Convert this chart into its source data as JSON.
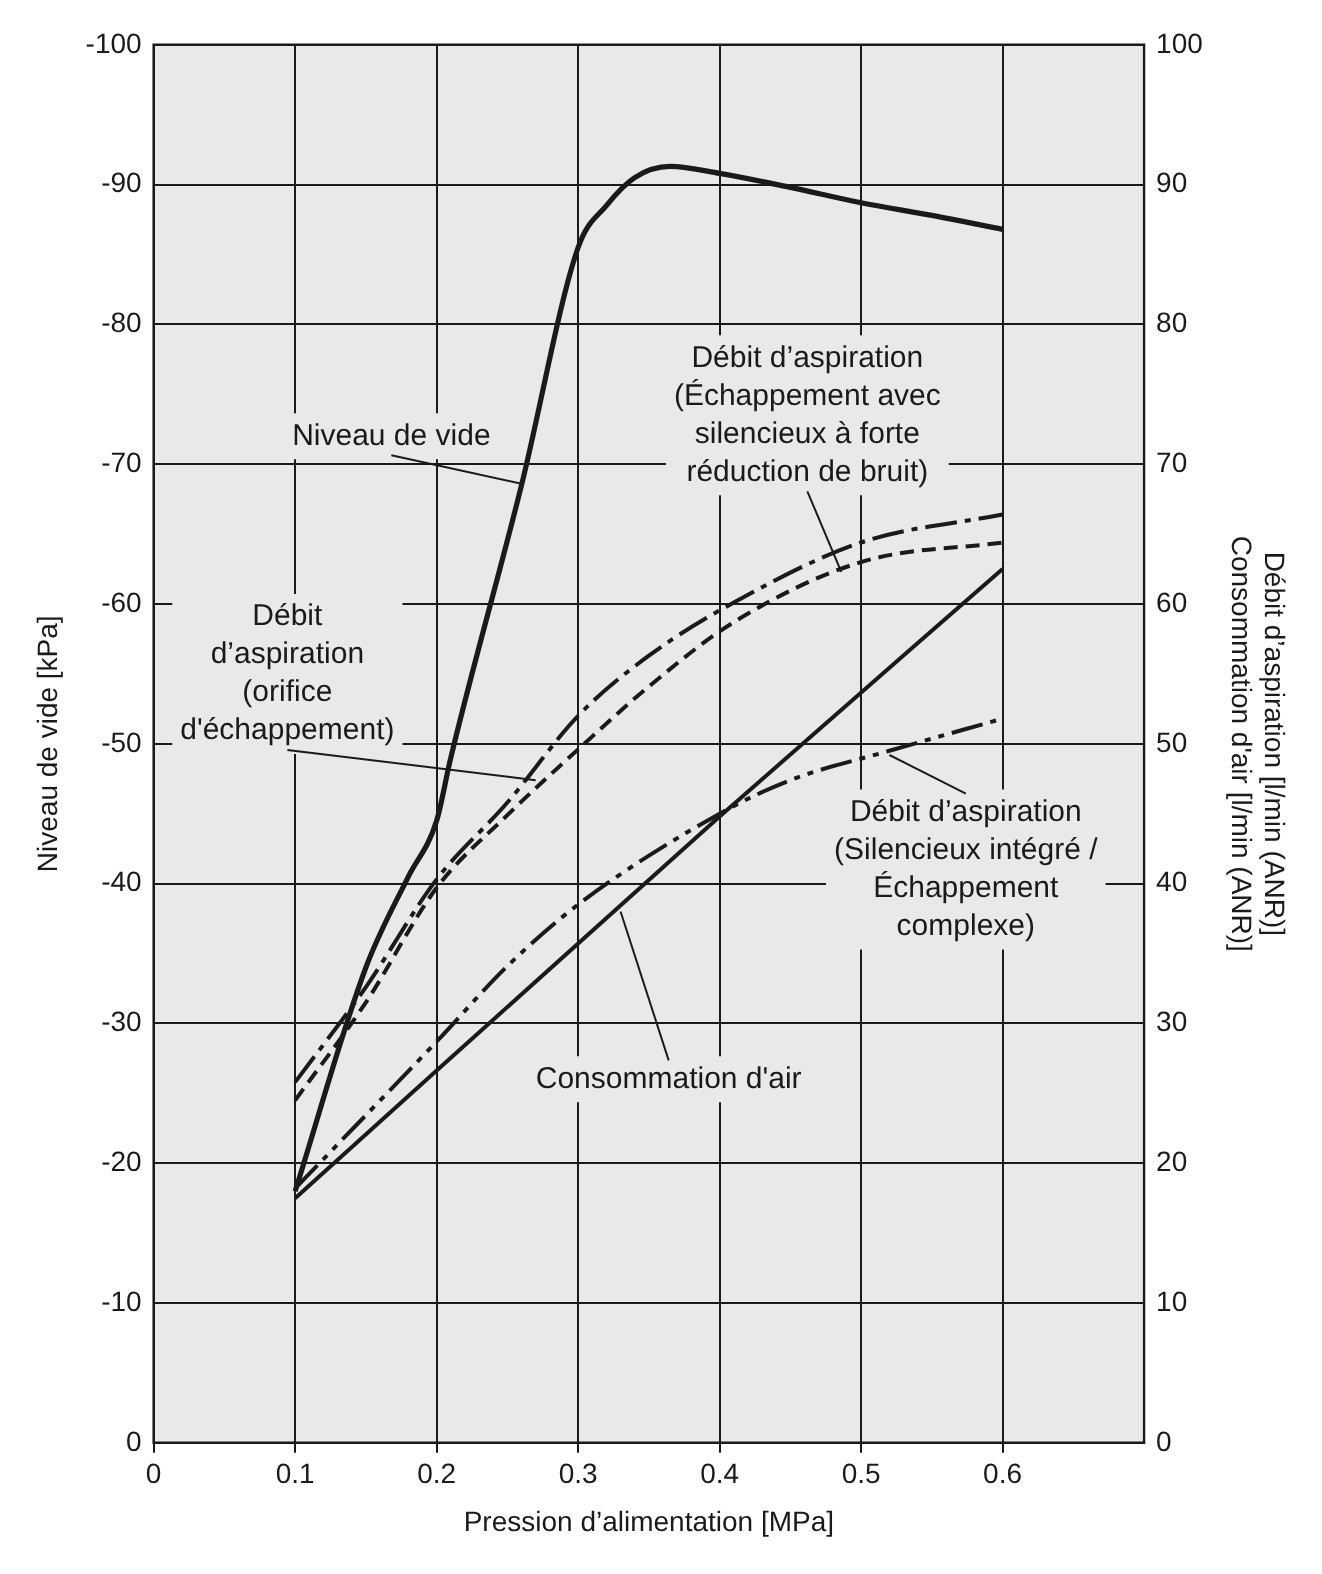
{
  "chart_data": {
    "type": "line",
    "xlabel": "Pression d’alimentation [MPa]",
    "ylabel": "Niveau de vide [kPa]",
    "y2label": "Débit d’aspiration [l/min (ANR)]\nConsommation d'air [l/min (ANR)]",
    "xlim": [
      0,
      0.7
    ],
    "xticks": [
      0,
      0.1,
      0.2,
      0.3,
      0.4,
      0.5,
      0.6
    ],
    "ylim": [
      0,
      -100
    ],
    "yticks": [
      0,
      -10,
      -20,
      -30,
      -40,
      -50,
      -60,
      -70,
      -80,
      -90,
      -100
    ],
    "y2lim": [
      0,
      100
    ],
    "y2ticks": [
      0,
      10,
      20,
      30,
      40,
      50,
      60,
      70,
      80,
      90,
      100
    ],
    "grid": true,
    "legend": false,
    "marker": "none",
    "series": [
      {
        "color": "#1a1a1a",
        "line_style": "solid",
        "axis": "y",
        "x": [
          0.1,
          0.15,
          0.18,
          0.2,
          0.21,
          0.26,
          0.3,
          0.32,
          0.34,
          0.365,
          0.4,
          0.45,
          0.5,
          0.55,
          0.6
        ],
        "values": [
          -18,
          -34,
          -40.5,
          -44.5,
          -49,
          -68.5,
          -85.5,
          -88.5,
          -90.5,
          -91.3,
          -90.8,
          -89.8,
          -88.7,
          -87.8,
          -86.8
        ]
      },
      {
        "color": "#1a1a1a",
        "line_style": "dashdot",
        "axis": "y2",
        "x": [
          0.1,
          0.15,
          0.2,
          0.25,
          0.3,
          0.35,
          0.41,
          0.5,
          0.6
        ],
        "values": [
          25.8,
          32.6,
          40.3,
          45.8,
          52,
          56.3,
          60.1,
          64.4,
          66.4
        ]
      },
      {
        "color": "#1a1a1a",
        "line_style": "dashed",
        "axis": "y2",
        "x": [
          0.1,
          0.15,
          0.2,
          0.25,
          0.3,
          0.35,
          0.41,
          0.5,
          0.6
        ],
        "values": [
          24.5,
          31.5,
          39.7,
          44.9,
          49.6,
          54.1,
          58.7,
          63,
          64.4
        ]
      },
      {
        "color": "#1a1a1a",
        "line_style": "solid",
        "axis": "y2",
        "x": [
          0.1,
          0.4,
          0.6
        ],
        "values": [
          17.5,
          44.8,
          62.5
        ]
      },
      {
        "color": "#1a1a1a",
        "line_style": "dashdotdot",
        "axis": "y2",
        "x": [
          0.1,
          0.2,
          0.25,
          0.3,
          0.4,
          0.45,
          0.52,
          0.6
        ],
        "values": [
          18.2,
          28.7,
          34.1,
          38.5,
          45,
          47.4,
          49.5,
          51.8
        ]
      }
    ],
    "annotations": [
      {
        "text": "Niveau de vide",
        "x": 0.26,
        "y": -68.6
      },
      {
        "text": "Débit\nd’aspiration\n(orifice\nd'échappement)",
        "x": 0.27,
        "y": -47.4
      },
      {
        "text": "Débit d’aspiration\n(Échappement avec\nsilencieux à forte\nréduction de bruit)",
        "x": 0.486,
        "y": -62.3
      },
      {
        "text": "Débit d’aspiration\n(Silencieux intégré /\nÉchappement\ncomplexe)",
        "x": 0.52,
        "y": -49.2
      },
      {
        "text": "Consommation d'air",
        "x": 0.33,
        "y": -38
      }
    ]
  }
}
